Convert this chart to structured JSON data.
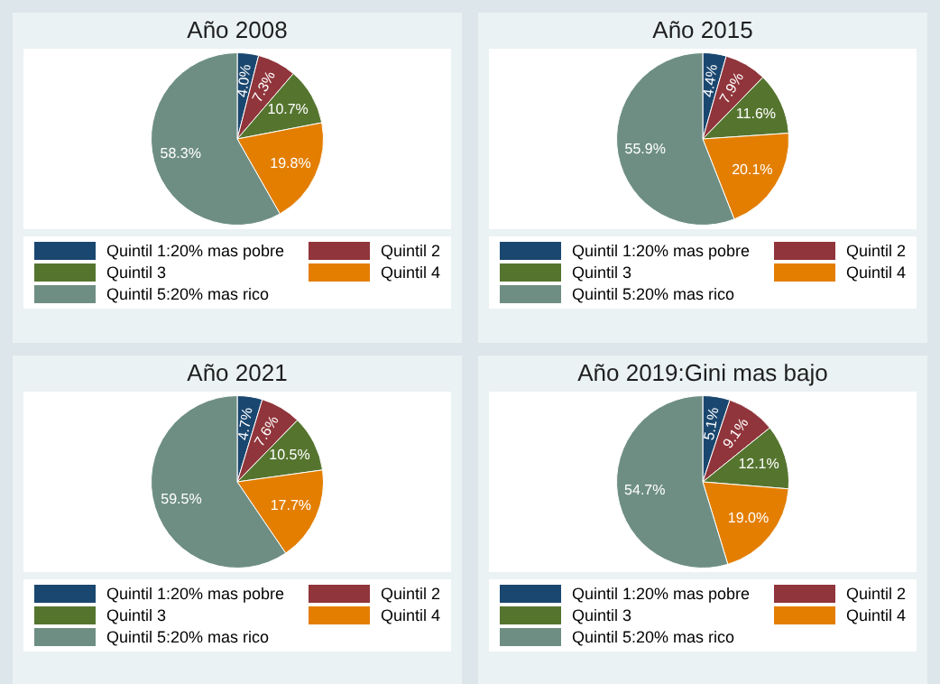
{
  "chart_data": [
    {
      "type": "pie",
      "title": "Año 2008",
      "categories": [
        "Quintil 1:20% mas pobre",
        "Quintil 2",
        "Quintil 3",
        "Quintil 4",
        "Quintil 5:20% mas rico"
      ],
      "values": [
        4.0,
        7.3,
        10.7,
        19.8,
        58.3
      ],
      "value_labels": [
        "4.0%",
        "7.3%",
        "10.7%",
        "19.8%",
        "58.3%"
      ],
      "colors": [
        "#1a476f",
        "#90353b",
        "#55752f",
        "#e37e00",
        "#6e8e84"
      ],
      "legend": "bottom"
    },
    {
      "type": "pie",
      "title": "Año 2015",
      "categories": [
        "Quintil 1:20% mas pobre",
        "Quintil 2",
        "Quintil 3",
        "Quintil 4",
        "Quintil 5:20% mas rico"
      ],
      "values": [
        4.4,
        7.9,
        11.6,
        20.1,
        55.9
      ],
      "value_labels": [
        "4.4%",
        "7.9%",
        "11.6%",
        "20.1%",
        "55.9%"
      ],
      "colors": [
        "#1a476f",
        "#90353b",
        "#55752f",
        "#e37e00",
        "#6e8e84"
      ],
      "legend": "bottom"
    },
    {
      "type": "pie",
      "title": "Año 2021",
      "categories": [
        "Quintil 1:20% mas pobre",
        "Quintil 2",
        "Quintil 3",
        "Quintil 4",
        "Quintil 5:20% mas rico"
      ],
      "values": [
        4.7,
        7.6,
        10.5,
        17.7,
        59.5
      ],
      "value_labels": [
        "4.7%",
        "7.6%",
        "10.5%",
        "17.7%",
        "59.5%"
      ],
      "colors": [
        "#1a476f",
        "#90353b",
        "#55752f",
        "#e37e00",
        "#6e8e84"
      ],
      "legend": "bottom"
    },
    {
      "type": "pie",
      "title": "Año 2019:Gini mas bajo",
      "categories": [
        "Quintil 1:20% mas pobre",
        "Quintil 2",
        "Quintil 3",
        "Quintil 4",
        "Quintil 5:20% mas rico"
      ],
      "values": [
        5.1,
        9.1,
        12.1,
        19.0,
        54.7
      ],
      "value_labels": [
        "5.1%",
        "9.1%",
        "12.1%",
        "19.0%",
        "54.7%"
      ],
      "colors": [
        "#1a476f",
        "#90353b",
        "#55752f",
        "#e37e00",
        "#6e8e84"
      ],
      "legend": "bottom"
    }
  ]
}
